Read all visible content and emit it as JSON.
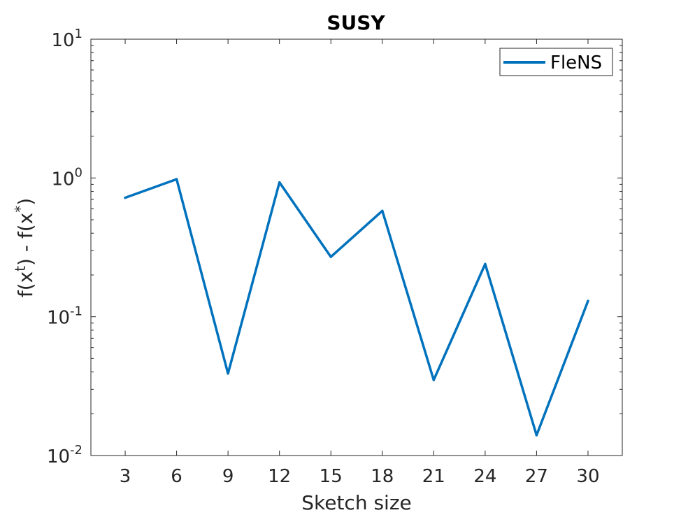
{
  "chart_data": {
    "type": "line",
    "title": "SUSY",
    "xlabel": "Sketch size",
    "ylabel_parts": {
      "f1": "f(x",
      "sup1": "t",
      "mid": ") - f(x",
      "sup2": "*",
      "end": ")"
    },
    "yscale": "log",
    "ylim": [
      0.01,
      10
    ],
    "xlim": [
      1,
      32
    ],
    "grid": false,
    "legend_position": "top-right",
    "x": [
      3,
      6,
      9,
      12,
      15,
      18,
      21,
      24,
      27,
      30
    ],
    "y_ticks": [
      {
        "base": "10",
        "exp": "-2",
        "value": 0.01
      },
      {
        "base": "10",
        "exp": "-1",
        "value": 0.1
      },
      {
        "base": "10",
        "exp": "0",
        "value": 1
      },
      {
        "base": "10",
        "exp": "1",
        "value": 10
      }
    ],
    "series": [
      {
        "name": "FleNS",
        "color": "#0072BD",
        "values": [
          0.72,
          0.98,
          0.039,
          0.93,
          0.27,
          0.58,
          0.035,
          0.24,
          0.014,
          0.13
        ]
      }
    ]
  }
}
